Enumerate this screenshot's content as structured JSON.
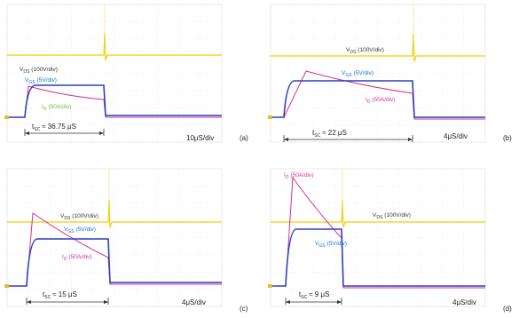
{
  "panels": [
    {
      "tag": "(a)",
      "vds": {
        "symbol": "V",
        "sub": "DS",
        "scale": "(100V/div)"
      },
      "vgs": {
        "symbol": "V",
        "sub": "GS",
        "scale": "(5V/div)"
      },
      "current": {
        "symbol": "I",
        "sub": "D",
        "scale": "(50A/div)"
      },
      "tsc": {
        "symbol": "t",
        "sub": "SC",
        "value": "≈ 36.75 μS"
      },
      "timebase": "10μS/div"
    },
    {
      "tag": "(b)",
      "vds": {
        "symbol": "V",
        "sub": "DS",
        "scale": "(100V/div)"
      },
      "vgs": {
        "symbol": "V",
        "sub": "GS",
        "scale": "(5V/div)"
      },
      "current": {
        "symbol": "I",
        "sub": "D",
        "scale": "(50A/div)"
      },
      "tsc": {
        "symbol": "t",
        "sub": "SC",
        "value": "≈ 22 μS"
      },
      "timebase": "4μS/div"
    },
    {
      "tag": "(c)",
      "vds": {
        "symbol": "V",
        "sub": "DS",
        "scale": "(100V/div)"
      },
      "vgs": {
        "symbol": "V",
        "sub": "GS",
        "scale": "(5V/div)"
      },
      "current": {
        "symbol": "I",
        "sub": "D",
        "scale": "(50A/div)"
      },
      "tsc": {
        "symbol": "t",
        "sub": "SC",
        "value": "≈ 15 μS"
      },
      "timebase": "4μS/div"
    },
    {
      "tag": "(d)",
      "vds": {
        "symbol": "V",
        "sub": "DS",
        "scale": "(100V/div)"
      },
      "vgs": {
        "symbol": "V",
        "sub": "GS",
        "scale": "(5V/div)"
      },
      "current": {
        "symbol": "I",
        "sub": "D",
        "scale": "(50A/div)"
      },
      "tsc": {
        "symbol": "t",
        "sub": "SC",
        "value": "≈ 9 μS"
      },
      "timebase": "4μS/div"
    }
  ]
}
